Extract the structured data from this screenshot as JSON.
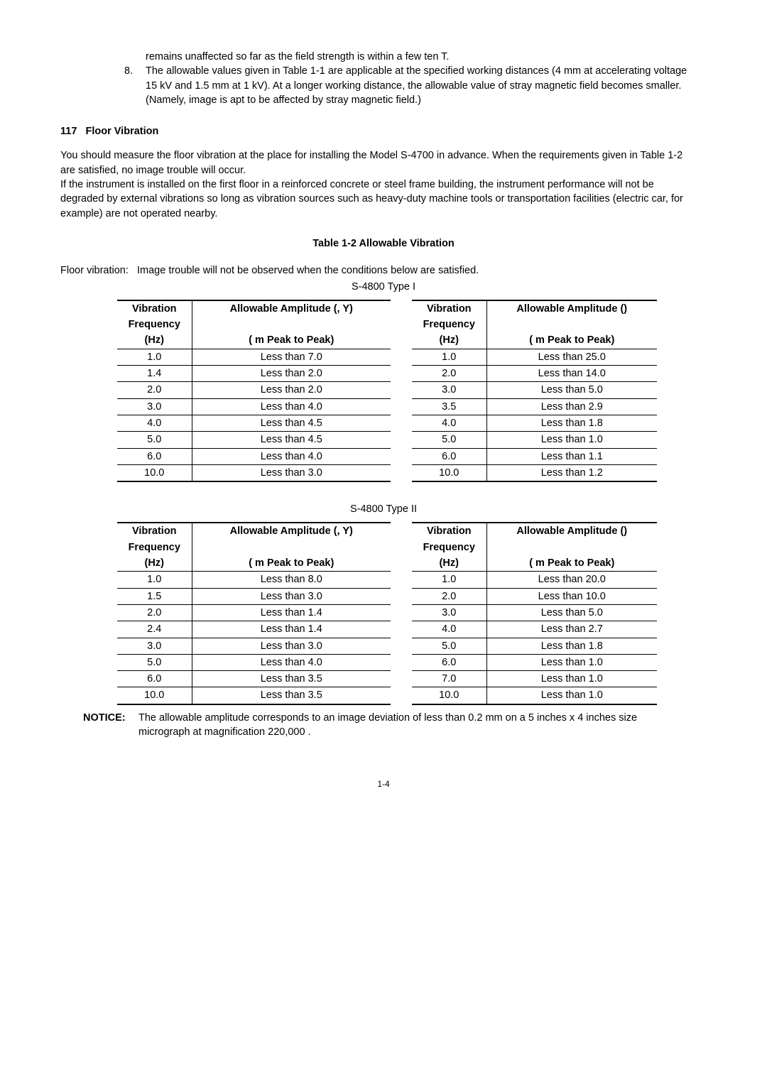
{
  "intro": {
    "carry": "remains unaffected so far as the field strength is within a few ten   T.",
    "item8num": "8.",
    "item8": "The allowable values given in Table 1-1 are applicable at the specified working distances (4 mm at accelerating voltage 15 kV and 1.5 mm at 1 kV).   At a longer working distance, the allowable value of stray magnetic field becomes smaller. (Namely, image is apt to be affected by stray magnetic field.)"
  },
  "section": {
    "num": "117",
    "title": "Floor Vibration",
    "body": "You should measure the floor vibration at the place for installing the Model S-4700 in advance. When the requirements given in Table 1-2 are satisfied, no image trouble will occur.\nIf the instrument is installed on the first floor in a reinforced concrete or steel frame building, the instrument performance will not be degraded by external vibrations so long as vibration sources such as heavy-duty machine tools or transportation facilities (electric car, for example) are not operated nearby."
  },
  "table_title": "Table 1-2   Allowable Vibration",
  "floor_line_label": "Floor vibration:",
  "floor_line_text": "Image trouble will not be observed when the conditions below are satisfied.",
  "type1_label": "S-4800 Type I",
  "type2_label": "S-4800 Type II",
  "headers": {
    "freq_l1": "Vibration",
    "freq_l2": "Frequency",
    "freq_l3": "(Hz)",
    "amp_xy_l1": "Allowable Amplitude (, Y)",
    "amp_z_l1": "Allowable Amplitude ()",
    "amp_l2": "(  m Peak to Peak)"
  },
  "t1_left": [
    {
      "f": "1.0",
      "a": "Less than 7.0"
    },
    {
      "f": "1.4",
      "a": "Less than 2.0"
    },
    {
      "f": "2.0",
      "a": "Less than 2.0"
    },
    {
      "f": "3.0",
      "a": "Less than 4.0"
    },
    {
      "f": "4.0",
      "a": "Less than 4.5"
    },
    {
      "f": "5.0",
      "a": "Less than 4.5"
    },
    {
      "f": "6.0",
      "a": "Less than 4.0"
    },
    {
      "f": "10.0",
      "a": "Less than 3.0"
    }
  ],
  "t1_right": [
    {
      "f": "1.0",
      "a": "Less than 25.0"
    },
    {
      "f": "2.0",
      "a": "Less than 14.0"
    },
    {
      "f": "3.0",
      "a": "Less than 5.0"
    },
    {
      "f": "3.5",
      "a": "Less than 2.9"
    },
    {
      "f": "4.0",
      "a": "Less than 1.8"
    },
    {
      "f": "5.0",
      "a": "Less than 1.0"
    },
    {
      "f": "6.0",
      "a": "Less than 1.1"
    },
    {
      "f": "10.0",
      "a": "Less than 1.2"
    }
  ],
  "t2_left": [
    {
      "f": "1.0",
      "a": "Less than 8.0"
    },
    {
      "f": "1.5",
      "a": "Less than 3.0"
    },
    {
      "f": "2.0",
      "a": "Less than 1.4"
    },
    {
      "f": "2.4",
      "a": "Less than 1.4"
    },
    {
      "f": "3.0",
      "a": "Less than 3.0"
    },
    {
      "f": "5.0",
      "a": "Less than 4.0"
    },
    {
      "f": "6.0",
      "a": "Less than 3.5"
    },
    {
      "f": "10.0",
      "a": "Less than 3.5"
    }
  ],
  "t2_right": [
    {
      "f": "1.0",
      "a": "Less than 20.0"
    },
    {
      "f": "2.0",
      "a": "Less than 10.0"
    },
    {
      "f": "3.0",
      "a": "Less than 5.0"
    },
    {
      "f": "4.0",
      "a": "Less than 2.7"
    },
    {
      "f": "5.0",
      "a": "Less than 1.8"
    },
    {
      "f": "6.0",
      "a": "Less than 1.0"
    },
    {
      "f": "7.0",
      "a": "Less than 1.0"
    },
    {
      "f": "10.0",
      "a": "Less than 1.0"
    }
  ],
  "notice": {
    "label": "NOTICE:",
    "text": "The allowable amplitude corresponds to an image deviation of less than 0.2 mm on a 5 inches x 4 inches size micrograph at magnification 220,000 ."
  },
  "page_number": "1-4"
}
